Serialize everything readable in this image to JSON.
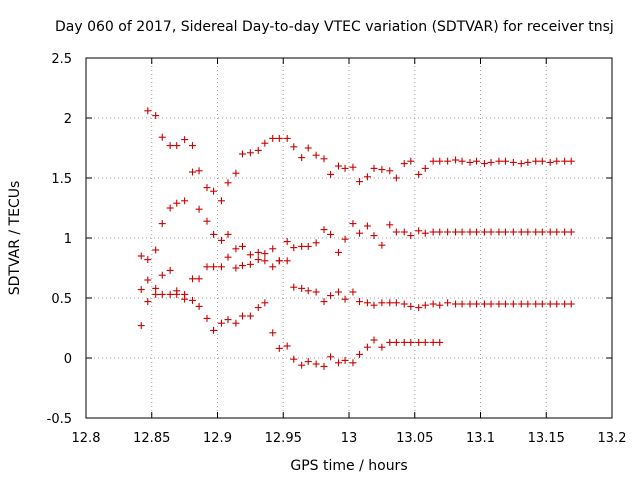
{
  "chart_data": {
    "type": "scatter",
    "title": "Day 060 of 2017, Sidereal Day-to-day VTEC variation (SDTVAR) for receiver tnsj",
    "xlabel": "GPS time / hours",
    "ylabel": "SDTVAR / TECUs",
    "xlim": [
      12.8,
      13.2
    ],
    "ylim": [
      -0.5,
      2.5
    ],
    "xticks": [
      "12.8",
      "12.85",
      "12.9",
      "12.95",
      "13",
      "13.05",
      "13.1",
      "13.15",
      "13.2"
    ],
    "yticks": [
      "-0.5",
      "0",
      "0.5",
      "1",
      "1.5",
      "2",
      "2.5"
    ],
    "grid": true,
    "marker": "+",
    "color": "#cc0000",
    "series": [
      {
        "name": "upper",
        "x": [
          12.842,
          12.847,
          12.853,
          12.858,
          12.864,
          12.869,
          12.875,
          12.881,
          12.886,
          12.892,
          12.897,
          12.903,
          12.908,
          12.914,
          12.919,
          12.925,
          12.931,
          12.936,
          12.942,
          12.947,
          12.953,
          12.958,
          12.964,
          12.969,
          12.975,
          12.981,
          12.986,
          12.992,
          12.997,
          13.003,
          13.008,
          13.014,
          13.019,
          13.025,
          13.031,
          13.036,
          13.042,
          13.047,
          13.053,
          13.058,
          13.064,
          13.069,
          13.075,
          13.081,
          13.086,
          13.092,
          13.097,
          13.103,
          13.108,
          13.114,
          13.119,
          13.125,
          13.131,
          13.136,
          13.142,
          13.147,
          13.153,
          13.158,
          13.164,
          13.169
        ],
        "y": [
          0.85,
          2.06,
          2.02,
          1.84,
          1.77,
          1.77,
          1.82,
          1.77,
          1.56,
          1.42,
          1.39,
          1.31,
          1.46,
          1.54,
          1.7,
          1.71,
          1.73,
          1.79,
          1.83,
          1.83,
          1.83,
          1.76,
          1.67,
          1.75,
          1.69,
          1.66,
          1.53,
          1.6,
          1.58,
          1.59,
          1.47,
          1.51,
          1.58,
          1.57,
          1.56,
          1.5,
          1.62,
          1.64,
          1.53,
          1.58,
          1.64,
          1.64,
          1.64,
          1.65,
          1.64,
          1.63,
          1.64,
          1.62,
          1.63,
          1.64,
          1.64,
          1.63,
          1.62,
          1.63,
          1.64,
          1.64,
          1.63,
          1.64,
          1.64,
          1.64
        ]
      },
      {
        "name": "middle",
        "x": [
          12.842,
          12.847,
          12.853,
          12.858,
          12.864,
          12.869,
          12.875,
          12.881,
          12.886,
          12.892,
          12.897,
          12.903,
          12.908,
          12.914,
          12.919,
          12.925,
          12.931,
          12.936,
          12.942,
          12.947,
          12.953,
          12.958,
          12.964,
          12.969,
          12.975,
          12.981,
          12.986,
          12.992,
          12.997,
          13.003,
          13.008,
          13.014,
          13.019,
          13.025,
          13.031,
          13.036,
          13.042,
          13.047,
          13.053,
          13.058,
          13.064,
          13.069,
          13.075,
          13.081,
          13.086,
          13.092,
          13.097,
          13.103,
          13.108,
          13.114,
          13.119,
          13.125,
          13.131,
          13.136,
          13.142,
          13.147,
          13.153,
          13.158,
          13.164,
          13.169
        ],
        "y": [
          0.57,
          0.82,
          0.9,
          1.12,
          1.25,
          1.29,
          1.31,
          1.55,
          1.24,
          1.14,
          1.03,
          0.98,
          1.03,
          0.91,
          0.93,
          0.86,
          0.88,
          0.87,
          0.91,
          0.81,
          0.97,
          0.92,
          0.93,
          0.93,
          0.96,
          1.07,
          1.03,
          0.88,
          0.99,
          1.12,
          1.04,
          1.1,
          1.02,
          0.94,
          1.11,
          1.05,
          1.05,
          1.02,
          1.06,
          1.04,
          1.05,
          1.05,
          1.05,
          1.05,
          1.05,
          1.05,
          1.05,
          1.05,
          1.05,
          1.05,
          1.05,
          1.05,
          1.05,
          1.05,
          1.05,
          1.05,
          1.05,
          1.05,
          1.05,
          1.05
        ]
      },
      {
        "name": "lower-middle",
        "x": [
          12.842,
          12.847,
          12.853,
          12.858,
          12.864,
          12.869,
          12.875,
          12.881,
          12.886,
          12.892,
          12.897,
          12.903,
          12.908,
          12.914,
          12.919,
          12.925,
          12.931,
          12.936,
          12.942,
          12.947,
          12.953,
          12.958,
          12.964,
          12.969,
          12.975,
          12.981,
          12.986,
          12.992,
          12.997,
          13.003,
          13.008,
          13.014,
          13.019,
          13.025,
          13.031,
          13.036,
          13.042,
          13.047,
          13.053,
          13.058,
          13.064,
          13.069,
          13.075,
          13.081,
          13.086,
          13.092,
          13.097,
          13.103,
          13.108,
          13.114,
          13.119,
          13.125,
          13.131,
          13.136,
          13.142,
          13.147,
          13.153,
          13.158,
          13.164,
          13.169
        ],
        "y": [
          0.27,
          0.65,
          0.58,
          0.69,
          0.73,
          0.53,
          0.49,
          0.66,
          0.66,
          0.76,
          0.76,
          0.76,
          0.84,
          0.75,
          0.77,
          0.78,
          0.82,
          0.81,
          0.76,
          0.81,
          0.81,
          0.59,
          0.58,
          0.56,
          0.55,
          0.47,
          0.52,
          0.55,
          0.49,
          0.55,
          0.47,
          0.46,
          0.44,
          0.46,
          0.46,
          0.46,
          0.45,
          0.43,
          0.42,
          0.44,
          0.45,
          0.44,
          0.46,
          0.45,
          0.45,
          0.45,
          0.45,
          0.45,
          0.45,
          0.45,
          0.45,
          0.45,
          0.45,
          0.45,
          0.45,
          0.45,
          0.45,
          0.45,
          0.45,
          0.45
        ]
      },
      {
        "name": "lower",
        "x": [
          12.847,
          12.853,
          12.858,
          12.864,
          12.869,
          12.875,
          12.881,
          12.886,
          12.892,
          12.897,
          12.903,
          12.908,
          12.914,
          12.919,
          12.925,
          12.931,
          12.936,
          12.942,
          12.947,
          12.953,
          12.958,
          12.964,
          12.969,
          12.975,
          12.981,
          12.986,
          12.992,
          12.997,
          13.003,
          13.008,
          13.014,
          13.019,
          13.025,
          13.031,
          13.036,
          13.042,
          13.047,
          13.053,
          13.058,
          13.064,
          13.069
        ],
        "y": [
          0.47,
          0.53,
          0.53,
          0.53,
          0.56,
          0.53,
          0.48,
          0.43,
          0.33,
          0.23,
          0.29,
          0.32,
          0.29,
          0.35,
          0.35,
          0.42,
          0.46,
          0.21,
          0.08,
          0.1,
          -0.01,
          -0.06,
          -0.03,
          -0.05,
          -0.07,
          0.01,
          -0.04,
          -0.02,
          -0.04,
          0.03,
          0.09,
          0.15,
          0.09,
          0.13,
          0.13,
          0.13,
          0.13,
          0.13,
          0.13,
          0.13,
          0.13
        ]
      }
    ]
  }
}
